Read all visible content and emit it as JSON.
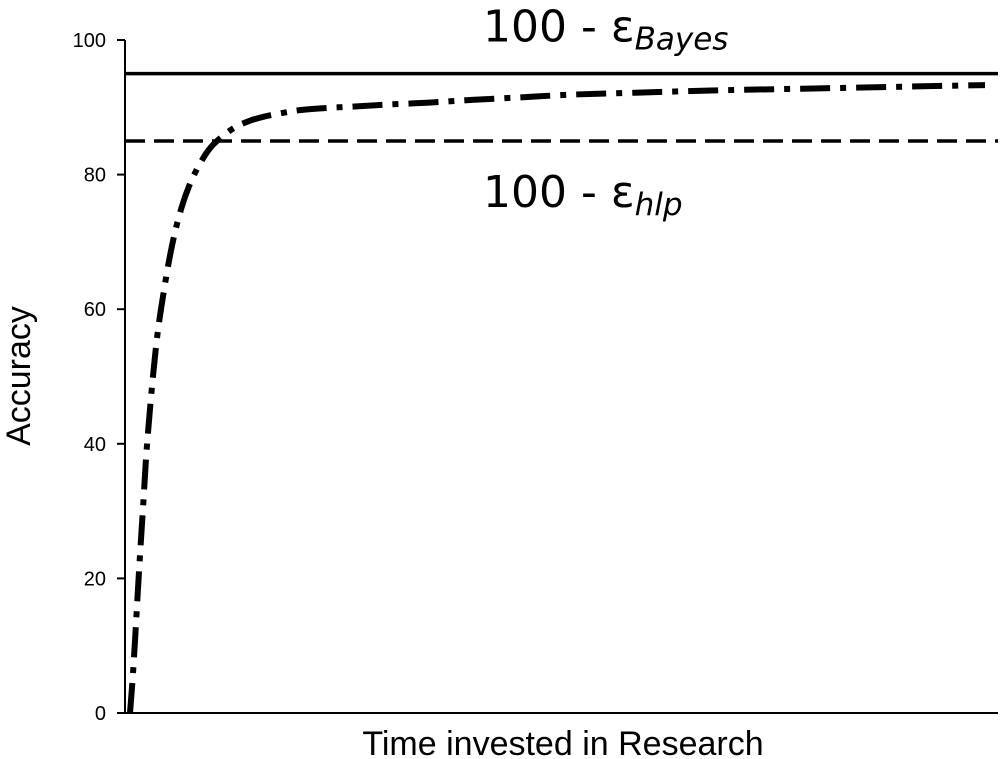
{
  "chart_data": {
    "type": "line",
    "title": "",
    "xlabel": "Time invested in Research",
    "ylabel": "Accuracy",
    "ylim": [
      0,
      100
    ],
    "yticks": [
      "0",
      "20",
      "40",
      "60",
      "80",
      "100"
    ],
    "x_ticks_shown": false,
    "grid": false,
    "legend": "none",
    "reference_lines": [
      {
        "id": "bayes",
        "y": 95,
        "style": "solid",
        "label_prefix": "100 - ε",
        "label_sub": "Bayes"
      },
      {
        "id": "hlp",
        "y": 85,
        "style": "dashed",
        "label_prefix": "100 - ε",
        "label_sub": "hlp"
      }
    ],
    "series": [
      {
        "style": "dash-dot",
        "x": [
          0,
          0.3,
          0.6,
          1,
          1.5,
          2,
          3,
          4,
          5,
          6,
          7,
          8,
          9,
          10,
          12,
          14,
          16,
          18,
          20,
          23,
          26,
          30,
          35,
          40,
          46,
          52,
          60,
          68,
          76,
          84,
          92,
          100
        ],
        "y": [
          0,
          5,
          11,
          20,
          30,
          40,
          54,
          63,
          70,
          75,
          78.6,
          81.2,
          83.3,
          84.8,
          86.8,
          88,
          88.7,
          89.2,
          89.6,
          89.9,
          90.1,
          90.4,
          90.7,
          91.1,
          91.5,
          91.9,
          92.2,
          92.5,
          92.7,
          92.9,
          93.1,
          93.3
        ]
      }
    ],
    "colors": {
      "line": "#000000",
      "background": "#ffffff"
    }
  }
}
